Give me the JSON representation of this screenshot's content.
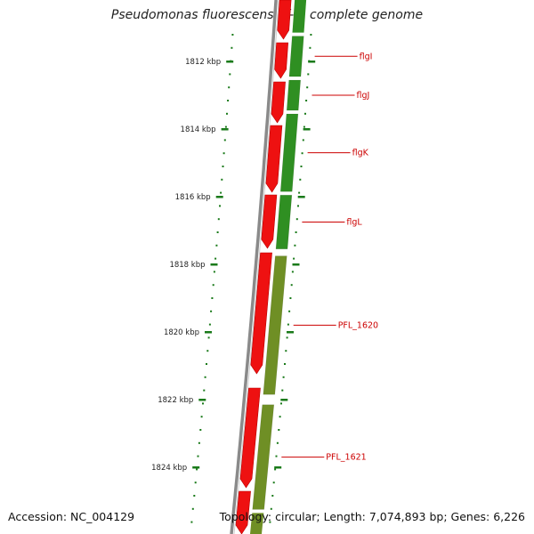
{
  "title": "Pseudomonas fluorescens Pf-5, complete genome",
  "accession_text": "Accession: NC_004129",
  "summary_text": "Topology: circular; Length: 7,074,893 bp; Genes: 6,226",
  "colors": {
    "backbone": "#8a8a8a",
    "forward_gene": "#ee1111",
    "reverse_gene_dark": "#2f8f22",
    "reverse_gene_olive": "#6f8f25",
    "tick": "#1a7a1a",
    "gene_label": "#cc0000"
  },
  "ticks": [
    {
      "label": "1812 kbp",
      "kbp": 1812
    },
    {
      "label": "1814 kbp",
      "kbp": 1814
    },
    {
      "label": "1816 kbp",
      "kbp": 1816
    },
    {
      "label": "1818 kbp",
      "kbp": 1818
    },
    {
      "label": "1820 kbp",
      "kbp": 1820
    },
    {
      "label": "1822 kbp",
      "kbp": 1822
    },
    {
      "label": "1824 kbp",
      "kbp": 1824
    }
  ],
  "genes": [
    {
      "name": "flgI",
      "strand": "-",
      "start_kbp": 1811.2,
      "end_kbp": 1812.5
    },
    {
      "name": "flgJ",
      "strand": "-",
      "start_kbp": 1812.5,
      "end_kbp": 1813.5
    },
    {
      "name": "flgK",
      "strand": "-",
      "start_kbp": 1813.5,
      "end_kbp": 1815.9
    },
    {
      "name": "flgL",
      "strand": "-",
      "start_kbp": 1815.9,
      "end_kbp": 1817.6
    },
    {
      "name": "PFL_1620",
      "strand": "-",
      "start_kbp": 1817.7,
      "end_kbp": 1821.9
    },
    {
      "name": "PFL_1621",
      "strand": "-",
      "start_kbp": 1822.1,
      "end_kbp": 1825.3
    }
  ]
}
